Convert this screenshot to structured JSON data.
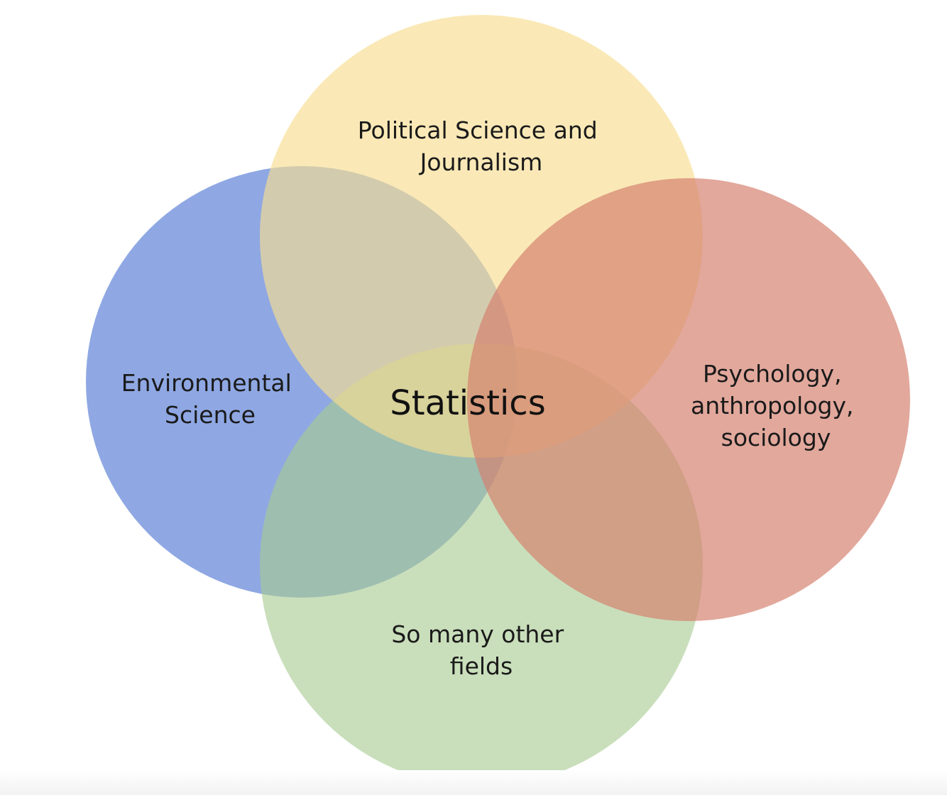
{
  "diagram": {
    "type": "venn",
    "center_label": "Statistics",
    "circles": [
      {
        "id": "environmental-science",
        "label_lines": [
          "Environmental",
          "Science"
        ],
        "color": "#6f8fdb"
      },
      {
        "id": "political-science",
        "label_lines": [
          "Political Science and",
          "Journalism"
        ],
        "color": "#f8dd90"
      },
      {
        "id": "social-sciences",
        "label_lines": [
          "Psychology,",
          "anthropology,",
          "sociology"
        ],
        "color": "#d47f6d"
      },
      {
        "id": "other-fields",
        "label_lines": [
          "So many other",
          "fields"
        ],
        "color": "#a8cb91"
      }
    ]
  }
}
